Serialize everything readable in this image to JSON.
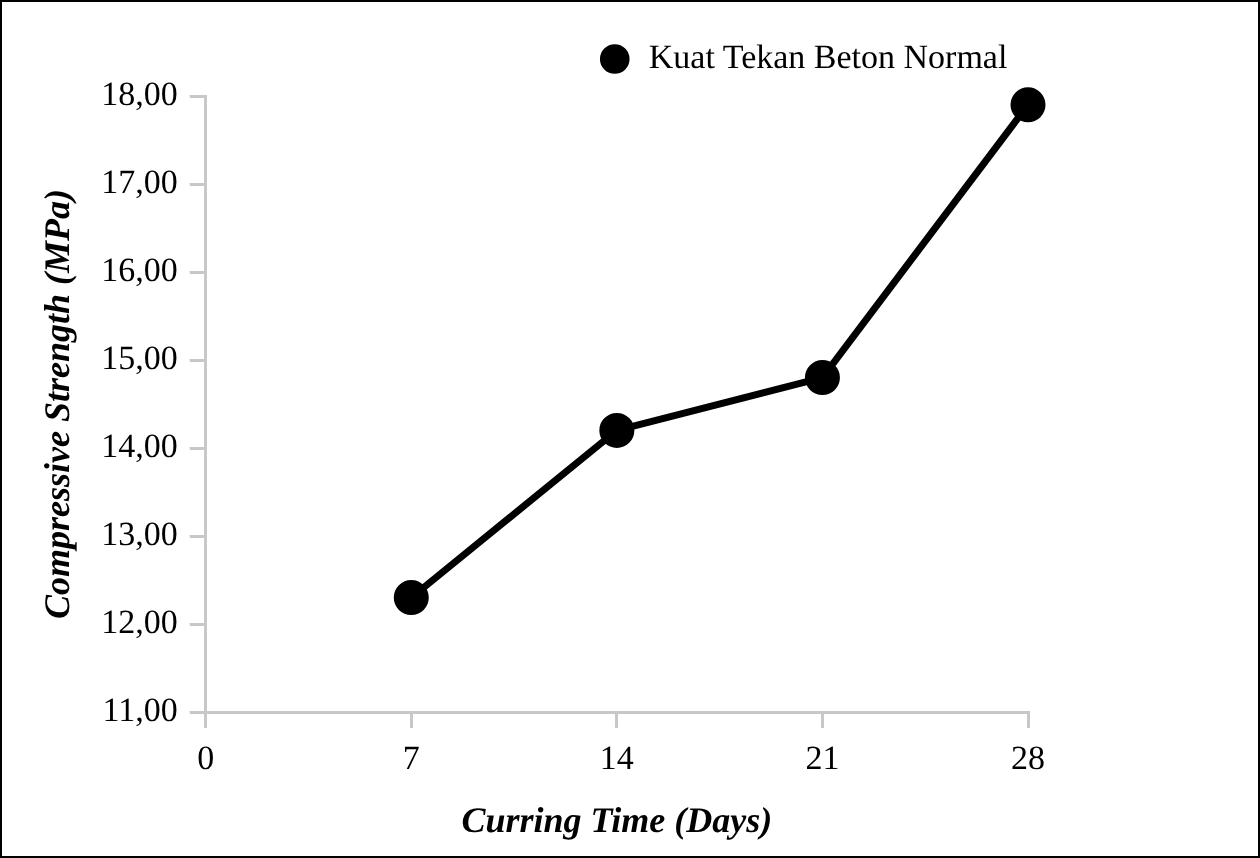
{
  "chart_data": {
    "type": "line",
    "xlabel": "Curring Time (Days)",
    "ylabel": "Compressive Strength (MPa)",
    "x": [
      7,
      14,
      21,
      28
    ],
    "series": [
      {
        "name": "Kuat Tekan Beton Normal",
        "color": "#000000",
        "values": [
          12.3,
          14.2,
          14.8,
          17.9
        ]
      }
    ],
    "xlim": [
      0,
      28
    ],
    "xticks": [
      0,
      7,
      14,
      21,
      28
    ],
    "ylim": [
      11,
      18
    ],
    "yticks": [
      {
        "value": 11,
        "label": "11,00"
      },
      {
        "value": 12,
        "label": "12,00"
      },
      {
        "value": 13,
        "label": "13,00"
      },
      {
        "value": 14,
        "label": "14,00"
      },
      {
        "value": 15,
        "label": "15,00"
      },
      {
        "value": 16,
        "label": "16,00"
      },
      {
        "value": 17,
        "label": "17,00"
      },
      {
        "value": 18,
        "label": "18,00"
      }
    ],
    "grid": false,
    "legend": "top right",
    "marker": "circle",
    "line_style": "solid"
  }
}
